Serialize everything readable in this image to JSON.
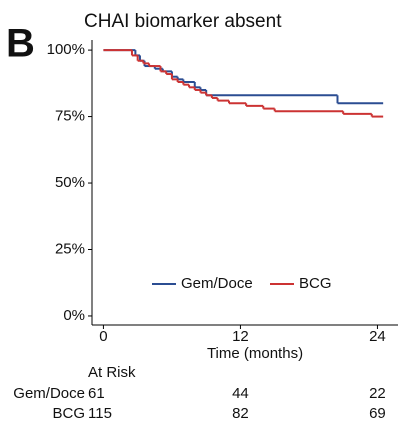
{
  "chart_data": {
    "type": "line",
    "step": "post",
    "panel_label": "B",
    "title": "CHAI biomarker absent",
    "x_label": "Time (months)",
    "xlim": [
      -1,
      25.8
    ],
    "xticks": [
      0,
      12,
      24
    ],
    "ylim": [
      -3.4,
      103.8
    ],
    "yticks": [
      {
        "value": 0,
        "label": "0%"
      },
      {
        "value": 25,
        "label": "25%"
      },
      {
        "value": 50,
        "label": "50%"
      },
      {
        "value": 75,
        "label": "75%"
      },
      {
        "value": 100,
        "label": "100%"
      }
    ],
    "legend": "lower center",
    "series": [
      {
        "name": "Gem/Doce",
        "color": "#2b4d92",
        "x": [
          0,
          2.8,
          3.2,
          3.6,
          4.5,
          5.2,
          6,
          6.5,
          7,
          8,
          8.5,
          9,
          20.5,
          24.5
        ],
        "values": [
          100,
          98,
          96,
          94,
          93,
          92,
          90,
          89,
          88,
          86,
          85,
          83,
          80,
          80
        ]
      },
      {
        "name": "BCG",
        "color": "#cc3333",
        "x": [
          0,
          2.5,
          3,
          3.5,
          4,
          5,
          5.5,
          6,
          6.5,
          7,
          7.5,
          8,
          8.5,
          9,
          9.5,
          10,
          11,
          12.5,
          14,
          15,
          21,
          23.5,
          24.5
        ],
        "values": [
          100,
          98,
          96,
          95,
          94,
          92,
          91,
          89,
          88,
          87,
          86,
          85,
          84,
          83,
          82,
          81,
          80,
          79,
          78,
          77,
          76,
          75,
          75
        ]
      }
    ],
    "risk_table": {
      "title": "At Risk",
      "rows": [
        {
          "name": "Gem/Doce",
          "values": [
            61,
            44,
            22
          ]
        },
        {
          "name": "BCG",
          "values": [
            115,
            82,
            69
          ]
        }
      ]
    }
  }
}
